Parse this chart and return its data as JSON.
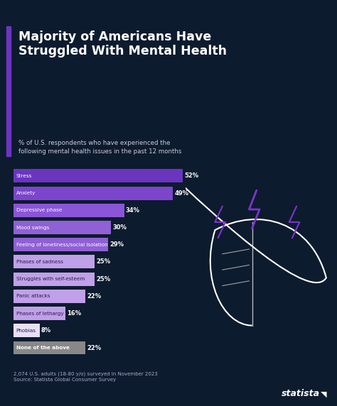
{
  "title": "Majority of Americans Have\nStruggled With Mental Health",
  "subtitle": "% of U.S. respondents who have experienced the\nfollowing mental health issues in the past 12 months",
  "categories": [
    "Stress",
    "Anxiety",
    "Depressive phase",
    "Mood swings",
    "Feeling of loneliness/social isolation",
    "Phases of sadness",
    "Struggles with self-esteem",
    "Panic attacks",
    "Phases of lethargy",
    "Phobias",
    "None of the above"
  ],
  "values": [
    52,
    49,
    34,
    30,
    29,
    25,
    25,
    22,
    16,
    8,
    22
  ],
  "bar_colors": [
    "#6B35C0",
    "#7B45CC",
    "#8B55D8",
    "#9060D5",
    "#9060D5",
    "#C0A0E8",
    "#C0A0E8",
    "#C0A0E8",
    "#C0A0E8",
    "#E8E0F5",
    "#888888"
  ],
  "label_colors": [
    "#FFFFFF",
    "#FFFFFF",
    "#FFFFFF",
    "#FFFFFF",
    "#FFFFFF",
    "#2a1a4a",
    "#2a1a4a",
    "#2a1a4a",
    "#2a1a4a",
    "#2a1a4a",
    "#FFFFFF"
  ],
  "background_color": "#0d1b2e",
  "title_color": "#FFFFFF",
  "subtitle_color": "#CCCCDD",
  "footer_text": "2,074 U.S. adults (18-80 y/o) surveyed in November 2023\nSource: Statista Global Consumer Survey",
  "footer_color": "#AAAACC",
  "accent_color": "#6B35C0",
  "bar_max": 52
}
